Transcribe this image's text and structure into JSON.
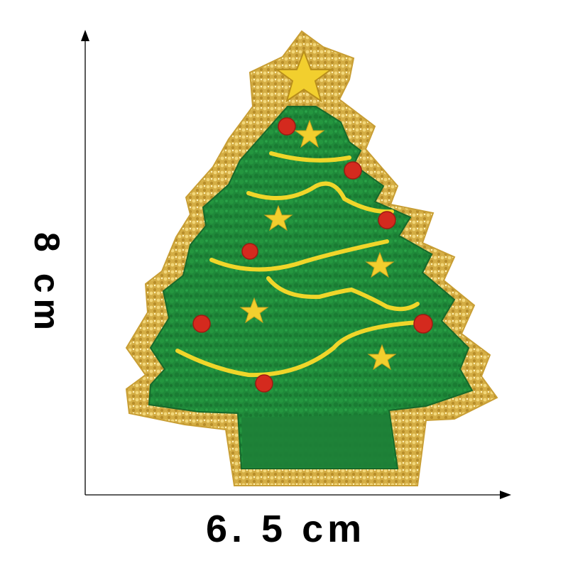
{
  "dimensions": {
    "width_label": "6. 5  cm",
    "height_label": "8  cm"
  },
  "colors": {
    "background": "#ffffff",
    "tree_green": "#1f8a3a",
    "tree_dark": "#176b2c",
    "sequin_gold": "#d9b44a",
    "garland_yellow": "#f0d62a",
    "ornament_red": "#d42a1e",
    "star_yellow": "#f2cf2e",
    "axis": "#000000"
  },
  "icons": {
    "patch": "christmas-tree-patch",
    "top": "star-icon",
    "ornament": "ornament-icon"
  }
}
